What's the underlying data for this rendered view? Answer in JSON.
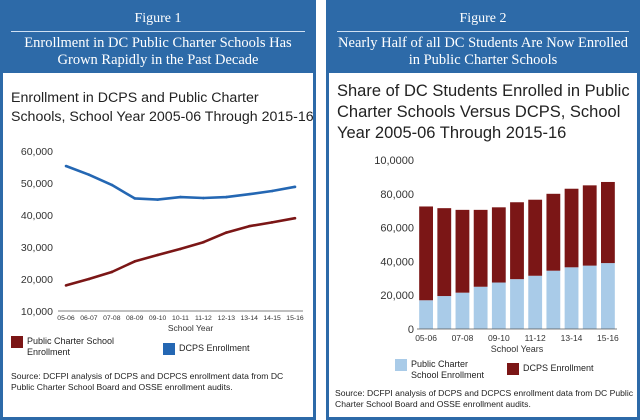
{
  "figure1": {
    "number": "Figure 1",
    "title": "Enrollment in DC Public Charter Schools Has Grown Rapidly in the Past Decade",
    "chart_title": "Enrollment in DCPS and Public Charter Schools, School Year 2005-06 Through 2015-16",
    "source": "Source: DCFPI analysis of DCPS and DCPCS enrollment data from DC Public Charter School Board and OSSE enrollment audits.",
    "legend": [
      {
        "label": "Public Charter School Enrollment",
        "color": "#7b1616"
      },
      {
        "label": "DCPS Enrollment",
        "color": "#2467b3"
      }
    ]
  },
  "figure2": {
    "number": "Figure 2",
    "title": "Nearly Half of all DC Students Are Now Enrolled in Public Charter Schools",
    "chart_title": "Share of DC Students Enrolled in Public Charter Schools Versus DCPS, School Year 2005-06 Through 2015-16",
    "source": "Source: DCFPI analysis of DCPS and DCPCS enrollment data from DC Public Charter School Board and OSSE enrollment audits.",
    "legend": [
      {
        "label": "Public Charter School Enrollment",
        "color": "#a9cbe8"
      },
      {
        "label": "DCPS Enrollment",
        "color": "#7b1616"
      }
    ]
  },
  "chart_data": [
    {
      "type": "line",
      "title": "Enrollment in DCPS and Public Charter Schools, School Year 2005-06 Through 2015-16",
      "xlabel": "School Year",
      "ylabel": "",
      "ylim": [
        10000,
        60000
      ],
      "yticks": [
        "10,000",
        "20,000",
        "30,000",
        "40,000",
        "50,000",
        "60,000"
      ],
      "categories": [
        "05-06",
        "06-07",
        "07-08",
        "08-09",
        "09-10",
        "10-11",
        "11-12",
        "12-13",
        "13-14",
        "14-15",
        "15-16"
      ],
      "series": [
        {
          "name": "Public Charter School Enrollment",
          "color": "#7b1616",
          "values": [
            18000,
            20000,
            22200,
            25500,
            27500,
            29400,
            31500,
            34500,
            36500,
            37700,
            39000
          ]
        },
        {
          "name": "DCPS Enrollment",
          "color": "#2467b3",
          "values": [
            55300,
            52600,
            49400,
            45200,
            44800,
            45600,
            45300,
            45600,
            46500,
            47500,
            48800
          ]
        }
      ]
    },
    {
      "type": "bar",
      "stacked": true,
      "title": "Share of DC Students Enrolled in Public Charter Schools Versus DCPS, School Year 2005-06 Through 2015-16",
      "xlabel": "School Years",
      "ylabel": "",
      "ylim": [
        0,
        100000
      ],
      "yticks": [
        "0",
        "20,000",
        "40,000",
        "60,000",
        "80,000",
        "10,0000"
      ],
      "categories": [
        "05-06",
        "06-07",
        "07-08",
        "08-09",
        "09-10",
        "10-11",
        "11-12",
        "12-13",
        "13-14",
        "14-15",
        "15-16"
      ],
      "tick_labels": [
        "05-06",
        "07-08",
        "09-10",
        "11-12",
        "13-14",
        "15-16"
      ],
      "series": [
        {
          "name": "Public Charter School Enrollment",
          "color": "#a9cbe8",
          "values": [
            17000,
            19500,
            21500,
            25000,
            27500,
            29500,
            31500,
            34500,
            36500,
            37500,
            39000
          ]
        },
        {
          "name": "DCPS Enrollment",
          "color": "#7b1616",
          "values": [
            55500,
            52000,
            49000,
            45500,
            44500,
            45500,
            45000,
            45500,
            46500,
            47500,
            48000
          ]
        }
      ]
    }
  ]
}
